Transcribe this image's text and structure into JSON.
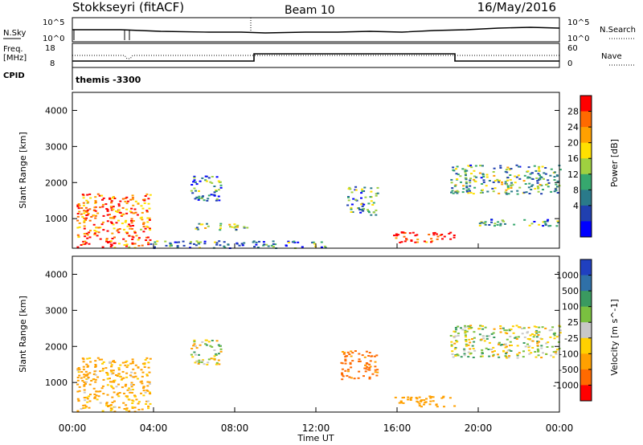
{
  "header": {
    "station": "Stokkseyri (fitACF)",
    "beam": "Beam 10",
    "date": "16/May/2016"
  },
  "top_panels": {
    "nsky_label": "N.Sky",
    "nsky_tick_hi": "10^5",
    "nsky_tick_lo": "10^0",
    "nsearch_label": "N.Search",
    "freq_label": "Freq.",
    "freq_unit": "[MHz]",
    "freq_tick_hi": "18",
    "freq_tick_lo": "8",
    "nave_label": "Nave",
    "nave_tick_hi": "60",
    "nave_tick_lo": "0",
    "cpid_label": "CPID",
    "cpid_value": "themis -3300"
  },
  "chart_data": [
    {
      "type": "heatmap",
      "panel": "power",
      "ylabel": "Slant Range [km]",
      "ylim": [
        180,
        4500
      ],
      "yticks": [
        1000,
        2000,
        3000,
        4000
      ],
      "colorbar_label": "Power [dB]",
      "colorbar_ticks": [
        "28",
        "24",
        "20",
        "16",
        "12",
        "8",
        "4"
      ],
      "colorbar_colors": [
        "#ff0000",
        "#ff6a00",
        "#ffa000",
        "#ffe000",
        "#9fd040",
        "#36a86e",
        "#2a7a8a",
        "#2040b0",
        "#0000ff"
      ],
      "echo_regions": [
        {
          "t_start": 0.2,
          "t_end": 3.8,
          "r_start": 200,
          "r_end": 1700,
          "intensity": 0.85
        },
        {
          "t_start": 5.8,
          "t_end": 7.3,
          "r_start": 1500,
          "r_end": 2200,
          "intensity": 0.3
        },
        {
          "t_start": 6.0,
          "t_end": 8.6,
          "r_start": 700,
          "r_end": 900,
          "intensity": 0.45
        },
        {
          "t_start": 3.8,
          "t_end": 12.5,
          "r_start": 200,
          "r_end": 400,
          "intensity": 0.3
        },
        {
          "t_start": 13.5,
          "t_end": 15.0,
          "r_start": 1100,
          "r_end": 1900,
          "intensity": 0.35
        },
        {
          "t_start": 15.8,
          "t_end": 18.8,
          "r_start": 350,
          "r_end": 650,
          "intensity": 0.95
        },
        {
          "t_start": 18.6,
          "t_end": 24.0,
          "r_start": 1700,
          "r_end": 2500,
          "intensity": 0.4
        },
        {
          "t_start": 20.0,
          "t_end": 24.0,
          "r_start": 800,
          "r_end": 1000,
          "intensity": 0.35
        }
      ]
    },
    {
      "type": "heatmap",
      "panel": "velocity",
      "xlabel": "Time UT",
      "ylabel": "Slant Range [km]",
      "xticks": [
        "00:00",
        "04:00",
        "08:00",
        "12:00",
        "16:00",
        "20:00",
        "00:00"
      ],
      "ylim": [
        180,
        4500
      ],
      "yticks": [
        1000,
        2000,
        3000,
        4000
      ],
      "colorbar_label": "Velocity [m s^-1]",
      "colorbar_ticks": [
        "1000",
        "500",
        "100",
        "25",
        "-25",
        "-100",
        "-500",
        "-1000"
      ],
      "colorbar_colors": [
        "#2040c0",
        "#2f70a8",
        "#3a9a60",
        "#7ac040",
        "#c8c8c8",
        "#ffd000",
        "#ffa000",
        "#ff6a00",
        "#ff0000"
      ],
      "echo_regions": [
        {
          "t_start": 0.2,
          "t_end": 3.8,
          "r_start": 200,
          "r_end": 1700,
          "velocity": -150
        },
        {
          "t_start": 5.8,
          "t_end": 7.3,
          "r_start": 1500,
          "r_end": 2200,
          "velocity": 0
        },
        {
          "t_start": 13.2,
          "t_end": 15.0,
          "r_start": 1100,
          "r_end": 1900,
          "velocity": -600
        },
        {
          "t_start": 15.8,
          "t_end": 18.8,
          "r_start": 350,
          "r_end": 650,
          "velocity": -300
        },
        {
          "t_start": 18.6,
          "t_end": 24.0,
          "r_start": 1700,
          "r_end": 2600,
          "velocity": 0
        }
      ]
    }
  ]
}
